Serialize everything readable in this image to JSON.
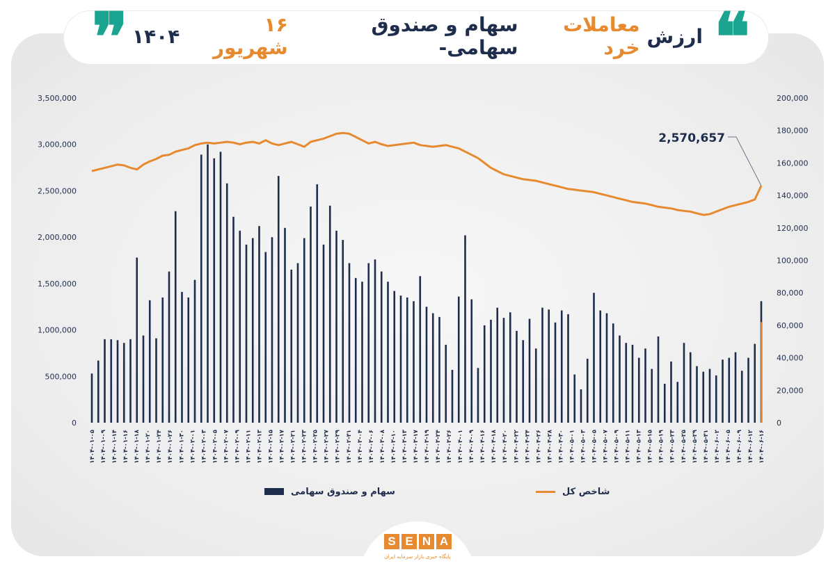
{
  "header": {
    "title_parts": [
      {
        "text": "ارزش",
        "style": "dark"
      },
      {
        "text": "معاملات خرد",
        "style": "orange"
      },
      {
        "text": "سهام و صندوق سهامی-",
        "style": "dark"
      },
      {
        "text": "۱۶ شهریور",
        "style": "orange"
      },
      {
        "text": "۱۴۰۴",
        "style": "dark"
      }
    ],
    "quote_open": "❝",
    "quote_close": "❞"
  },
  "colors": {
    "bars": "#1f2d4d",
    "index_line": "#e6892f",
    "last_bar": "#e6892f",
    "quote": "#1ba48f"
  },
  "logo": {
    "letters": [
      "S",
      "E",
      "N",
      "A"
    ],
    "subtitle": "پایگاه خبری بازار سرمایه ایران"
  },
  "chart_data": {
    "type": "bar+line",
    "left_axis": {
      "ticks": [
        0,
        500000,
        1000000,
        1500000,
        2000000,
        2500000,
        3000000,
        3500000
      ],
      "tick_labels": [
        "0",
        "500,000",
        "1,000,000",
        "1,500,000",
        "2,000,000",
        "2,500,000",
        "3,000,000",
        "3,500,000"
      ],
      "ylim": [
        0,
        3500000
      ]
    },
    "right_axis": {
      "ticks": [
        0,
        20000,
        40000,
        60000,
        80000,
        100000,
        120000,
        140000,
        160000,
        180000,
        200000
      ],
      "tick_labels": [
        "0",
        "20,000",
        "40,000",
        "60,000",
        "80,000",
        "100,000",
        "120,000",
        "140,000",
        "160,000",
        "180,000",
        "200,000"
      ],
      "ylim": [
        0,
        200000
      ]
    },
    "categories": [
      "1404-01-05",
      "1404-01-06",
      "1404-01-07",
      "1404-01-08",
      "1404-01-09",
      "1404-01-10",
      "1404-01-11",
      "1404-01-12",
      "1404-01-13",
      "1404-01-14",
      "1404-01-15",
      "1404-01-16",
      "1404-01-17",
      "1404-01-18",
      "1404-01-19",
      "1404-01-20",
      "1404-01-21",
      "1404-01-22",
      "1404-01-23",
      "1404-01-24",
      "1404-01-25",
      "1404-01-26",
      "1404-01-27",
      "1404-01-28",
      "1404-01-29",
      "1404-01-30",
      "1404-01-31",
      "1404-02-01",
      "1404-02-02",
      "1404-02-03",
      "1404-02-04",
      "1404-02-05",
      "1404-02-06",
      "1404-02-07",
      "1404-02-08",
      "1404-02-09",
      "1404-02-10",
      "1404-02-11",
      "1404-02-12",
      "1404-02-13",
      "1404-02-14",
      "1404-02-15",
      "1404-02-16",
      "1404-02-17",
      "1404-02-18",
      "1404-02-19",
      "1404-02-20",
      "1404-02-21",
      "1404-02-22",
      "1404-02-23",
      "1404-02-24",
      "1404-02-25",
      "1404-02-26",
      "1404-02-27",
      "1404-02-28",
      "1404-02-29",
      "1404-02-30",
      "1404-02-31",
      "1404-03-01",
      "1404-03-02",
      "1404-03-03",
      "1404-03-04",
      "1404-03-05",
      "1404-03-06",
      "1404-03-07",
      "1404-03-08",
      "1404-03-09",
      "1404-03-10",
      "1404-03-11",
      "1404-03-12",
      "1404-03-13",
      "1404-03-14",
      "1404-03-15",
      "1404-03-16",
      "1404-03-17",
      "1404-03-18",
      "1404-03-19",
      "1404-03-20",
      "1404-03-21",
      "1404-03-22",
      "1404-03-23",
      "1404-03-24",
      "1404-03-25",
      "1404-03-26",
      "1404-03-27",
      "1404-03-28",
      "1404-03-29",
      "1404-03-30",
      "1404-03-31",
      "1404-04-01",
      "1404-04-02",
      "1404-04-03",
      "1404-04-04",
      "1404-04-05",
      "1404-04-06",
      "1404-04-07",
      "1404-04-08",
      "1404-04-09",
      "1404-04-10",
      "1404-04-11",
      "1404-04-12",
      "1404-04-13",
      "1404-04-14",
      "1404-04-15",
      "1404-04-16"
    ],
    "x_tick_labels": [
      "۱۴۰۴-۰۱-۰۵",
      "۱۴۰۴-۰۱-۰۹",
      "۱۴۰۴-۰۱-۱۴",
      "۱۴۰۴-۰۱-۱۶",
      "۱۴۰۴-۰۱-۱۸",
      "۱۴۰۴-۰۱-۲۰",
      "۱۴۰۴-۰۱-۲۴",
      "۱۴۰۴-۰۱-۲۶",
      "۱۴۰۴-۰۱-۳۰",
      "۱۴۰۴-۰۲-۰۱",
      "۱۴۰۴-۰۲-۰۳",
      "۱۴۰۴-۰۲-۰۵",
      "۱۴۰۴-۰۲-۰۷",
      "۱۴۰۴-۰۲-۰۹",
      "۱۴۰۴-۰۲-۱۱",
      "۱۴۰۴-۰۲-۱۳",
      "۱۴۰۴-۰۲-۱۵",
      "۱۴۰۴-۰۲-۱۷",
      "۱۴۰۴-۰۲-۲۱",
      "۱۴۰۴-۰۲-۲۳",
      "۱۴۰۴-۰۲-۲۵",
      "۱۴۰۴-۰۲-۲۷",
      "۱۴۰۴-۰۲-۲۹",
      "۱۴۰۴-۰۲-۳۱",
      "۱۴۰۴-۰۳-۰۴",
      "۱۴۰۴-۰۳-۰۶",
      "۱۴۰۴-۰۳-۰۸",
      "۱۴۰۴-۰۳-۱۰",
      "۱۴۰۴-۰۳-۱۳",
      "۱۴۰۴-۰۳-۱۷",
      "۱۴۰۴-۰۳-۱۹",
      "۱۴۰۴-۰۳-۲۴",
      "۱۴۰۴-۰۳-۲۶",
      "۱۴۰۴-۰۴-۰۱",
      "۱۴۰۴-۰۴-۰۹",
      "۱۴۰۴-۰۴-۱۶",
      "۱۴۰۴-۰۴-۱۸",
      "۱۴۰۴-۰۴-۲۰",
      "۱۴۰۴-۰۴-۲۲",
      "۱۴۰۴-۰۴-۲۴",
      "۱۴۰۴-۰۴-۲۶",
      "۱۴۰۴-۰۴-۲۸",
      "۱۴۰۴-۰۴-۳۰",
      "۱۴۰۴-۰۵-۰۱",
      "۱۴۰۴-۰۵-۰۳",
      "۱۴۰۴-۰۵-۰۵",
      "۱۴۰۴-۰۵-۰۷",
      "۱۴۰۴-۰۵-۰۹",
      "۱۴۰۴-۰۵-۱۱",
      "۱۴۰۴-۰۵-۱۳",
      "۱۴۰۴-۰۵-۱۵",
      "۱۴۰۴-۰۵-۱۹",
      "۱۴۰۴-۰۵-۲۳",
      "۱۴۰۴-۰۵-۲۵",
      "۱۴۰۴-۰۵-۲۹",
      "۱۴۰۴-۰۵-۳۱",
      "۱۴۰۴-۰۶-۰۲",
      "۱۴۰۴-۰۶-۰۵",
      "۱۴۰۴-۰۶-۰۹",
      "۱۴۰۴-۰۶-۱۲",
      "۱۴۰۴-۰۶-۱۶"
    ],
    "series": [
      {
        "name": "سهام و صندوق سهامی",
        "axis": "left",
        "type": "bar",
        "values": [
          530000,
          670000,
          900000,
          900000,
          890000,
          860000,
          900000,
          1780000,
          940000,
          1320000,
          910000,
          1350000,
          1630000,
          2280000,
          1410000,
          1350000,
          1540000,
          2890000,
          3000000,
          2850000,
          2920000,
          2580000,
          2220000,
          2070000,
          1920000,
          1990000,
          2120000,
          1840000,
          2000000,
          2660000,
          2100000,
          1650000,
          1720000,
          1990000,
          2330000,
          2570000,
          1920000,
          2340000,
          2070000,
          1970000,
          1720000,
          1560000,
          1520000,
          1720000,
          1760000,
          1630000,
          1520000,
          1420000,
          1370000,
          1350000,
          1310000,
          1580000,
          1250000,
          1180000,
          1140000,
          840000,
          570000,
          1360000,
          2020000,
          1330000,
          590000,
          1050000,
          1110000,
          1240000,
          1130000,
          1190000,
          990000,
          890000,
          1120000,
          800000,
          1240000,
          1220000,
          1080000,
          1210000,
          1170000,
          520000,
          360000,
          690000,
          1400000,
          1210000,
          1180000,
          1070000,
          940000,
          860000,
          840000,
          700000,
          800000,
          580000,
          930000,
          420000,
          660000,
          440000,
          860000,
          760000,
          610000,
          550000,
          580000,
          510000,
          680000,
          700000,
          760000,
          560000,
          700000,
          850000,
          1310000
        ],
        "color": "#1f2d4d"
      },
      {
        "name": "شاخص کل",
        "axis": "right",
        "type": "line",
        "values": [
          155000,
          156000,
          157000,
          158000,
          159000,
          158500,
          157000,
          156000,
          159000,
          161000,
          162500,
          164500,
          165000,
          167000,
          168000,
          169000,
          171000,
          172000,
          172500,
          172000,
          172500,
          173000,
          172500,
          171500,
          172500,
          173000,
          172000,
          174000,
          172000,
          171000,
          172000,
          173000,
          171500,
          170000,
          173000,
          174000,
          175000,
          176500,
          178000,
          178500,
          178000,
          176000,
          174000,
          172000,
          173000,
          171500,
          170500,
          171000,
          171500,
          172000,
          172500,
          171000,
          170500,
          170000,
          170500,
          171000,
          170000,
          169000,
          167000,
          165000,
          163000,
          160000,
          157000,
          155000,
          153000,
          152000,
          151000,
          150000,
          149500,
          149000,
          148000,
          147000,
          146000,
          145000,
          144000,
          143500,
          143000,
          142500,
          142000,
          141000,
          140000,
          139000,
          138000,
          137000,
          136000,
          135500,
          135000,
          134000,
          133000,
          132500,
          132000,
          131000,
          130500,
          130000,
          129000,
          128000,
          128500,
          130000,
          131500,
          133000,
          134000,
          135000,
          136000,
          137500,
          146000
        ],
        "color": "#e6892f"
      }
    ],
    "last_bar_value_right_axis": 62000,
    "annotation": "2,570,657",
    "legend": [
      "سهام و صندوق سهامی",
      "شاخص کل"
    ],
    "legend_placement": "bottom",
    "grid": false
  }
}
